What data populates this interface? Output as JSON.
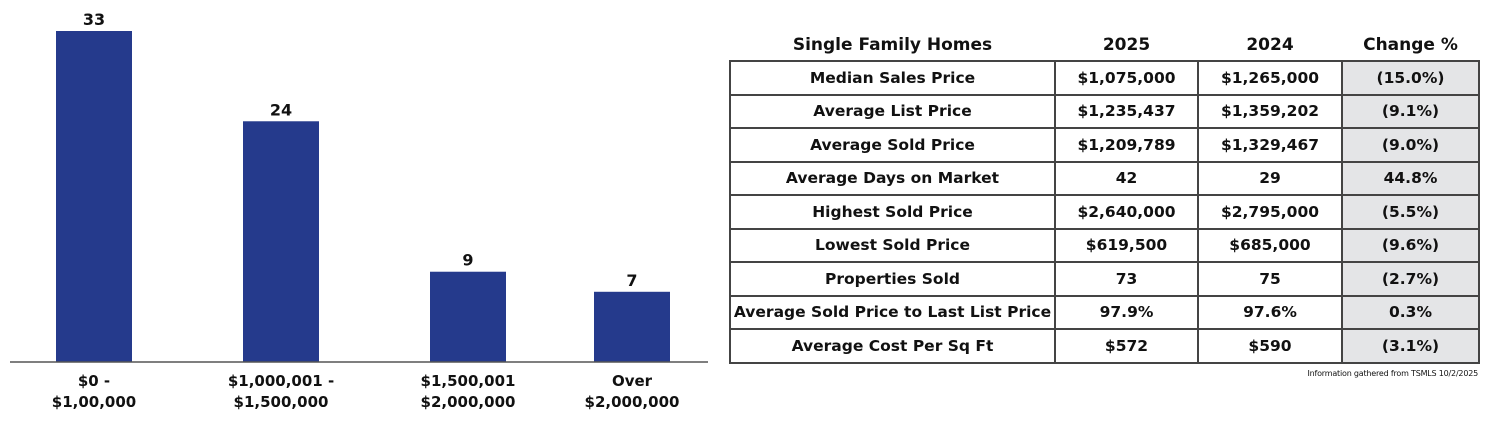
{
  "chart_data": {
    "type": "bar",
    "categories": [
      [
        "$0 -",
        "$1,00,000"
      ],
      [
        "$1,000,001 -",
        "$1,500,000"
      ],
      [
        "$1,500,001",
        "$2,000,000"
      ],
      [
        "Over",
        "$2,000,000"
      ]
    ],
    "values": [
      33,
      24,
      9,
      7
    ],
    "title": "",
    "xlabel": "",
    "ylabel": "",
    "ylim": [
      0,
      33
    ],
    "grid": false,
    "bar_color": "#253a8c"
  },
  "table": {
    "headers": [
      "Single Family Homes",
      "2025",
      "2024",
      "Change %"
    ],
    "rows": [
      [
        "Median Sales Price",
        "$1,075,000",
        "$1,265,000",
        "(15.0%)"
      ],
      [
        "Average List Price",
        "$1,235,437",
        "$1,359,202",
        "(9.1%)"
      ],
      [
        "Average Sold Price",
        "$1,209,789",
        "$1,329,467",
        "(9.0%)"
      ],
      [
        "Average Days on Market",
        "42",
        "29",
        "44.8%"
      ],
      [
        "Highest Sold Price",
        "$2,640,000",
        "$2,795,000",
        "(5.5%)"
      ],
      [
        "Lowest Sold Price",
        "$619,500",
        "$685,000",
        "(9.6%)"
      ],
      [
        "Properties Sold",
        "73",
        "75",
        "(2.7%)"
      ],
      [
        "Average Sold Price to Last List Price",
        "97.9%",
        "97.6%",
        "0.3%"
      ],
      [
        "Average Cost Per Sq Ft",
        "$572",
        "$590",
        "(3.1%)"
      ]
    ],
    "change_column_color": "#e4e5e7"
  },
  "footnote": "Information gathered from TSMLS 10/2/2025"
}
